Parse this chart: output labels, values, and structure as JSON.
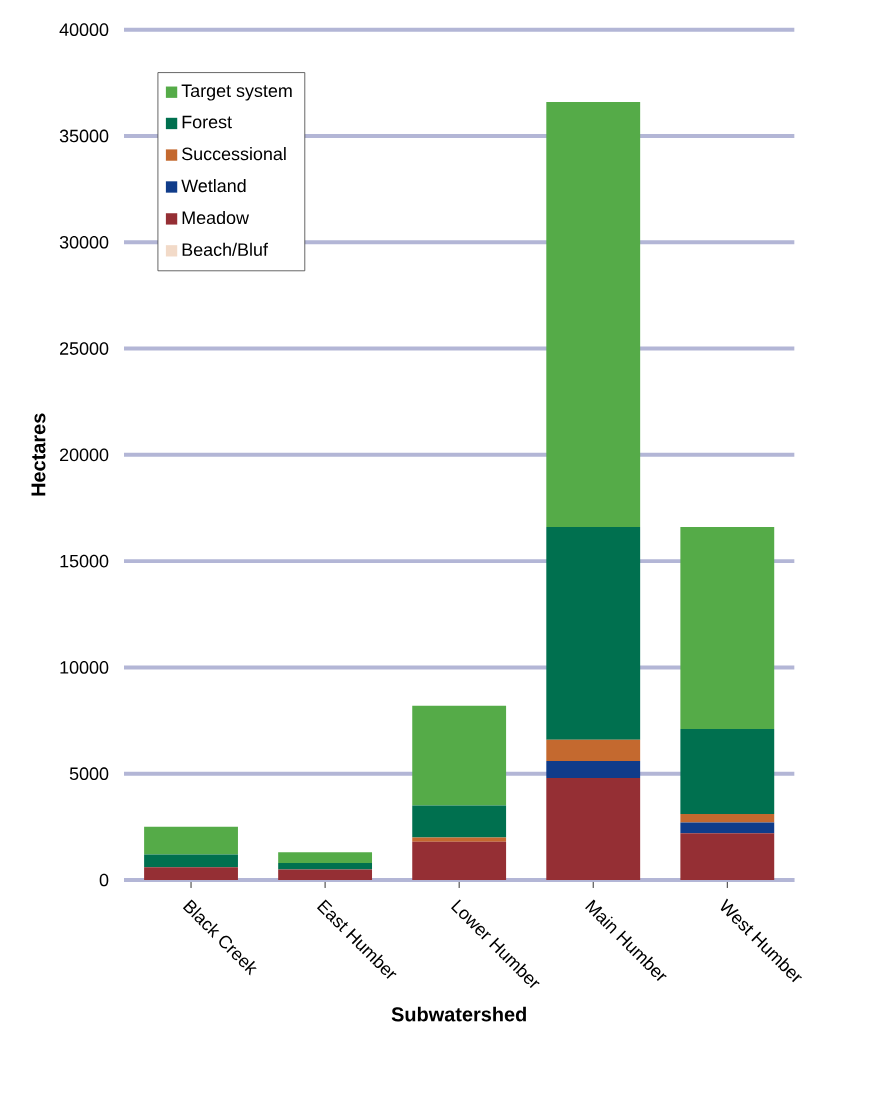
{
  "chart_data": {
    "type": "bar",
    "stacked": true,
    "xlabel": "Subwatershed",
    "ylabel": "Hectares",
    "categories": [
      "Black Creek",
      "East Humber",
      "Lower Humber",
      "Main Humber",
      "West Humber"
    ],
    "series": [
      {
        "name": "Beach/Bluf",
        "color": "#f2dac8",
        "values": [
          0,
          0,
          0,
          0,
          0
        ]
      },
      {
        "name": "Meadow",
        "color": "#952f34",
        "values": [
          600,
          500,
          1800,
          4800,
          2200
        ]
      },
      {
        "name": "Wetland",
        "color": "#103c8a",
        "values": [
          0,
          0,
          0,
          800,
          500
        ]
      },
      {
        "name": "Successional",
        "color": "#c4692f",
        "values": [
          0,
          0,
          200,
          1000,
          400
        ]
      },
      {
        "name": "Forest",
        "color": "#00704f",
        "values": [
          600,
          300,
          1500,
          10000,
          4000
        ]
      },
      {
        "name": "Target system",
        "color": "#55ab48",
        "values": [
          1300,
          500,
          4700,
          20000,
          9500
        ]
      }
    ],
    "ylim": [
      0,
      40000
    ],
    "yticks": [
      0,
      5000,
      10000,
      15000,
      20000,
      25000,
      30000,
      35000,
      40000
    ],
    "grid": "y",
    "legend": "top left"
  }
}
